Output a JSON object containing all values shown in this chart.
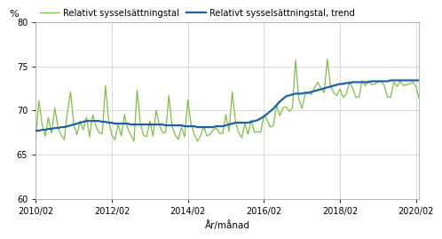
{
  "title": "",
  "ylabel": "%",
  "xlabel": "År/månad",
  "ylim": [
    60,
    80
  ],
  "yticks": [
    60,
    65,
    70,
    75,
    80
  ],
  "xtick_labels": [
    "2010/02",
    "2012/02",
    "2014/02",
    "2016/02",
    "2018/02",
    "2020/02"
  ],
  "line_color": "#7bc143",
  "trend_color": "#1f5fa6",
  "legend_labels": [
    "Relativt sysselsättningstal",
    "Relativt sysselsättningstal, trend"
  ],
  "background_color": "#ffffff",
  "grid_color": "#cccccc",
  "raw_values": [
    66.8,
    71.1,
    68.5,
    67.1,
    69.2,
    67.4,
    70.3,
    68.1,
    67.2,
    66.7,
    69.8,
    72.1,
    68.4,
    67.2,
    68.8,
    67.8,
    69.2,
    67.0,
    69.5,
    68.2,
    67.5,
    67.4,
    72.8,
    68.9,
    67.2,
    66.7,
    68.4,
    67.1,
    69.5,
    68.0,
    67.2,
    66.5,
    72.3,
    68.6,
    67.2,
    67.0,
    68.8,
    67.1,
    70.0,
    68.4,
    67.5,
    67.5,
    71.7,
    68.2,
    67.2,
    66.7,
    68.1,
    67.0,
    71.2,
    68.5,
    67.3,
    66.5,
    67.1,
    68.2,
    67.1,
    67.3,
    67.8,
    68.0,
    67.4,
    67.4,
    69.5,
    67.6,
    72.1,
    68.8,
    67.5,
    66.9,
    68.5,
    67.3,
    68.9,
    67.5,
    67.6,
    67.5,
    69.5,
    68.9,
    68.1,
    68.3,
    70.6,
    69.4,
    70.3,
    70.4,
    69.9,
    70.3,
    75.7,
    71.3,
    70.2,
    71.8,
    72.0,
    71.8,
    72.6,
    73.2,
    72.5,
    72.0,
    75.8,
    72.8,
    72.0,
    71.7,
    72.4,
    71.5,
    71.8,
    73.3,
    72.5,
    71.5,
    71.5,
    73.4,
    72.8,
    73.4,
    72.9,
    73.0,
    73.2,
    73.3,
    72.8,
    71.5,
    71.5,
    73.2,
    72.7,
    73.3,
    72.8,
    72.9,
    73.0,
    73.2,
    72.7,
    71.3
  ],
  "trend_values": [
    67.7,
    67.7,
    67.8,
    67.8,
    67.9,
    67.9,
    68.0,
    68.0,
    68.1,
    68.1,
    68.2,
    68.3,
    68.4,
    68.5,
    68.6,
    68.7,
    68.8,
    68.8,
    68.8,
    68.8,
    68.8,
    68.7,
    68.7,
    68.6,
    68.6,
    68.5,
    68.5,
    68.5,
    68.5,
    68.5,
    68.4,
    68.4,
    68.4,
    68.4,
    68.4,
    68.4,
    68.4,
    68.4,
    68.4,
    68.4,
    68.4,
    68.3,
    68.3,
    68.3,
    68.3,
    68.3,
    68.3,
    68.2,
    68.2,
    68.2,
    68.2,
    68.1,
    68.1,
    68.1,
    68.1,
    68.1,
    68.1,
    68.2,
    68.2,
    68.2,
    68.3,
    68.4,
    68.5,
    68.6,
    68.6,
    68.6,
    68.6,
    68.6,
    68.7,
    68.8,
    68.9,
    69.1,
    69.3,
    69.6,
    69.9,
    70.2,
    70.6,
    71.0,
    71.3,
    71.6,
    71.7,
    71.8,
    71.9,
    71.9,
    71.9,
    72.0,
    72.0,
    72.1,
    72.2,
    72.3,
    72.4,
    72.5,
    72.6,
    72.7,
    72.8,
    72.9,
    73.0,
    73.0,
    73.1,
    73.1,
    73.2,
    73.2,
    73.2,
    73.2,
    73.2,
    73.2,
    73.3,
    73.3,
    73.3,
    73.3,
    73.3,
    73.3,
    73.4,
    73.4,
    73.4,
    73.4,
    73.4,
    73.4,
    73.4,
    73.4,
    73.4,
    73.4
  ],
  "n_points": 122,
  "x_tick_positions": [
    0,
    24,
    48,
    72,
    96,
    120
  ]
}
